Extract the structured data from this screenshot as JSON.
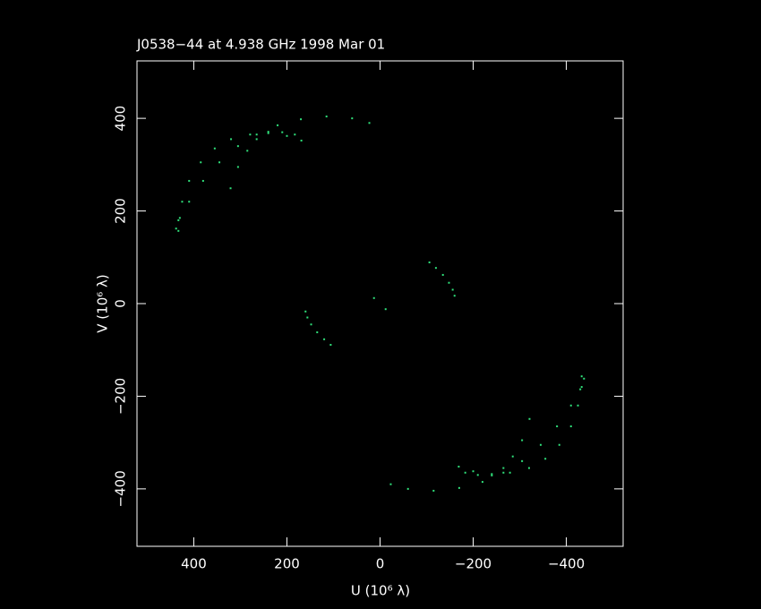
{
  "chart_data": {
    "type": "scatter",
    "title": "J0538−44 at 4.938 GHz 1998 Mar 01",
    "x_label": "U (10⁶ λ)",
    "y_label": "V (10⁶ λ)",
    "xlim": [
      522,
      -522
    ],
    "ylim": [
      -524,
      524
    ],
    "xticks": [
      400,
      200,
      0,
      {
        "value": -200,
        "label": "−200"
      },
      {
        "value": -400,
        "label": "−400"
      }
    ],
    "yticks": [
      {
        "value": -400,
        "label": "−400"
      },
      {
        "value": -200,
        "label": "−200"
      },
      0,
      200,
      400
    ],
    "series": [
      {
        "color": "#2fe07a",
        "x": [
          23,
          60,
          115,
          170,
          220,
          265,
          305,
          345,
          380,
          410,
          430,
          438,
          169,
          200,
          240,
          279,
          320,
          355,
          385,
          410,
          425,
          433,
          433,
          183,
          210,
          240,
          265,
          285,
          305,
          321,
          -106,
          -120,
          -135,
          -148,
          -156,
          -160,
          -23,
          -60,
          -115,
          -170,
          -220,
          -265,
          -305,
          -345,
          -380,
          -410,
          -430,
          -438,
          -169,
          -200,
          -240,
          -279,
          -320,
          -355,
          -385,
          -410,
          -425,
          -433,
          -433,
          -183,
          -210,
          -240,
          -265,
          -285,
          -305,
          -321,
          106,
          120,
          135,
          148,
          156,
          160,
          13,
          -12
        ],
        "y": [
          390,
          400,
          404,
          398,
          385,
          365,
          340,
          305,
          265,
          220,
          185,
          162,
          352,
          362,
          368,
          365,
          355,
          335,
          305,
          265,
          220,
          180,
          157,
          365,
          370,
          371,
          355,
          330,
          295,
          249,
          89,
          77,
          62,
          45,
          30,
          17,
          -390,
          -400,
          -404,
          -398,
          -385,
          -365,
          -340,
          -305,
          -265,
          -220,
          -185,
          -162,
          -352,
          -362,
          -368,
          -365,
          -355,
          -335,
          -305,
          -265,
          -220,
          -180,
          -157,
          -365,
          -370,
          -371,
          -355,
          -330,
          -295,
          -249,
          -89,
          -77,
          -62,
          -45,
          -30,
          -17,
          12,
          -12
        ]
      }
    ]
  }
}
